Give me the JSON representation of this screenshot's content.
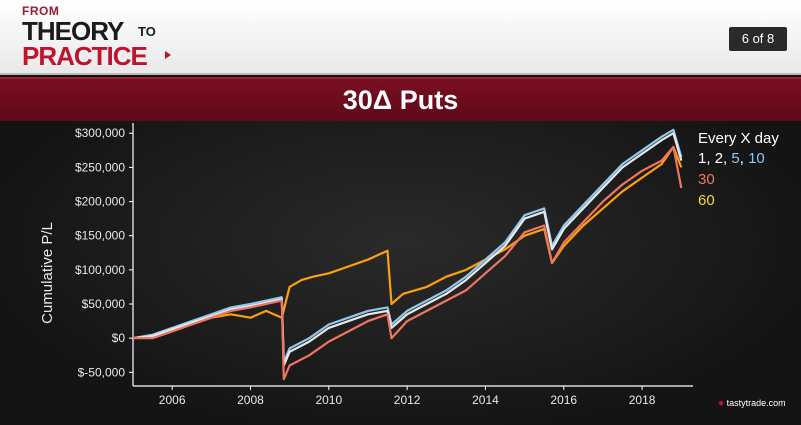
{
  "header": {
    "logo": {
      "from": "FROM",
      "theory": "THEORY",
      "to": "TO",
      "practice": "PRACTICE"
    },
    "page_counter": "6 of 8"
  },
  "slide_title": "30Δ Puts",
  "watermark": "tastytrade.com",
  "colors": {
    "freq_1_2_5_10": "#8ec8ee",
    "freq_30": "#f07560",
    "freq_60": "#f5d83a",
    "orange_series": "#ff9f0a",
    "title_bar": "#6b0c1d"
  },
  "chart_data": {
    "type": "line",
    "title": "",
    "xlabel": "",
    "ylabel": "Cumulative P/L",
    "xlim": [
      2005.0,
      2019.3
    ],
    "ylim": [
      -70000,
      315000
    ],
    "x_ticks": [
      "2006",
      "2008",
      "2010",
      "2012",
      "2014",
      "2016",
      "2018"
    ],
    "y_ticks": [
      "$300,000",
      "$250,000",
      "$200,000",
      "$150,000",
      "$100,000",
      "$50,000",
      "$0",
      "$-50,000"
    ],
    "legend": {
      "title": "Every X day",
      "entries": [
        "1",
        "2",
        "5",
        "10",
        "30",
        "60"
      ],
      "placement": "right"
    },
    "series": [
      {
        "color": "#ff9f0a",
        "points": [
          [
            2005.0,
            0
          ],
          [
            2005.5,
            5000
          ],
          [
            2006.0,
            15000
          ],
          [
            2006.5,
            20000
          ],
          [
            2007.0,
            30000
          ],
          [
            2007.5,
            35000
          ],
          [
            2008.0,
            30000
          ],
          [
            2008.4,
            40000
          ],
          [
            2008.8,
            30000
          ],
          [
            2009.0,
            75000
          ],
          [
            2009.3,
            85000
          ],
          [
            2009.6,
            90000
          ],
          [
            2010.0,
            95000
          ],
          [
            2010.5,
            105000
          ],
          [
            2011.0,
            115000
          ],
          [
            2011.5,
            128000
          ],
          [
            2011.6,
            50000
          ],
          [
            2011.9,
            65000
          ],
          [
            2012.5,
            75000
          ],
          [
            2013.0,
            90000
          ],
          [
            2013.5,
            100000
          ],
          [
            2014.0,
            115000
          ],
          [
            2014.5,
            130000
          ],
          [
            2015.0,
            150000
          ],
          [
            2015.5,
            160000
          ],
          [
            2015.7,
            110000
          ],
          [
            2016.0,
            135000
          ],
          [
            2016.5,
            165000
          ],
          [
            2017.0,
            190000
          ],
          [
            2017.5,
            215000
          ],
          [
            2018.0,
            235000
          ],
          [
            2018.5,
            255000
          ],
          [
            2018.8,
            280000
          ],
          [
            2019.0,
            250000
          ]
        ]
      },
      {
        "color": "#8ec8ee",
        "points": [
          [
            2005.0,
            0
          ],
          [
            2005.5,
            5000
          ],
          [
            2006.0,
            15000
          ],
          [
            2006.5,
            25000
          ],
          [
            2007.0,
            35000
          ],
          [
            2007.5,
            45000
          ],
          [
            2008.0,
            50000
          ],
          [
            2008.8,
            60000
          ],
          [
            2008.85,
            -35000
          ],
          [
            2009.0,
            -15000
          ],
          [
            2009.5,
            0
          ],
          [
            2010.0,
            20000
          ],
          [
            2010.5,
            30000
          ],
          [
            2011.0,
            40000
          ],
          [
            2011.5,
            45000
          ],
          [
            2011.6,
            20000
          ],
          [
            2012.0,
            40000
          ],
          [
            2012.5,
            55000
          ],
          [
            2013.0,
            70000
          ],
          [
            2013.5,
            90000
          ],
          [
            2014.0,
            115000
          ],
          [
            2014.5,
            140000
          ],
          [
            2015.0,
            180000
          ],
          [
            2015.5,
            190000
          ],
          [
            2015.7,
            135000
          ],
          [
            2016.0,
            165000
          ],
          [
            2016.5,
            195000
          ],
          [
            2017.0,
            225000
          ],
          [
            2017.5,
            255000
          ],
          [
            2018.0,
            275000
          ],
          [
            2018.5,
            295000
          ],
          [
            2018.8,
            305000
          ],
          [
            2019.0,
            265000
          ]
        ]
      },
      {
        "color": "#e8e8e8",
        "points": [
          [
            2005.0,
            0
          ],
          [
            2005.5,
            3000
          ],
          [
            2006.0,
            13000
          ],
          [
            2006.5,
            23000
          ],
          [
            2007.0,
            32000
          ],
          [
            2007.5,
            42000
          ],
          [
            2008.0,
            47000
          ],
          [
            2008.8,
            57000
          ],
          [
            2008.85,
            -40000
          ],
          [
            2009.0,
            -20000
          ],
          [
            2009.5,
            -5000
          ],
          [
            2010.0,
            15000
          ],
          [
            2010.5,
            25000
          ],
          [
            2011.0,
            35000
          ],
          [
            2011.5,
            40000
          ],
          [
            2011.6,
            15000
          ],
          [
            2012.0,
            35000
          ],
          [
            2012.5,
            50000
          ],
          [
            2013.0,
            65000
          ],
          [
            2013.5,
            85000
          ],
          [
            2014.0,
            110000
          ],
          [
            2014.5,
            135000
          ],
          [
            2015.0,
            175000
          ],
          [
            2015.5,
            185000
          ],
          [
            2015.7,
            130000
          ],
          [
            2016.0,
            160000
          ],
          [
            2016.5,
            190000
          ],
          [
            2017.0,
            220000
          ],
          [
            2017.5,
            250000
          ],
          [
            2018.0,
            270000
          ],
          [
            2018.5,
            290000
          ],
          [
            2018.8,
            300000
          ],
          [
            2019.0,
            260000
          ]
        ]
      },
      {
        "color": "#f07560",
        "points": [
          [
            2005.0,
            0
          ],
          [
            2005.5,
            0
          ],
          [
            2006.0,
            10000
          ],
          [
            2006.5,
            20000
          ],
          [
            2007.0,
            30000
          ],
          [
            2007.5,
            40000
          ],
          [
            2008.0,
            45000
          ],
          [
            2008.8,
            55000
          ],
          [
            2008.85,
            -60000
          ],
          [
            2009.0,
            -40000
          ],
          [
            2009.5,
            -25000
          ],
          [
            2010.0,
            -5000
          ],
          [
            2010.5,
            10000
          ],
          [
            2011.0,
            25000
          ],
          [
            2011.5,
            35000
          ],
          [
            2011.6,
            0
          ],
          [
            2012.0,
            25000
          ],
          [
            2012.5,
            40000
          ],
          [
            2013.0,
            55000
          ],
          [
            2013.5,
            70000
          ],
          [
            2014.0,
            95000
          ],
          [
            2014.5,
            120000
          ],
          [
            2015.0,
            155000
          ],
          [
            2015.5,
            165000
          ],
          [
            2015.7,
            110000
          ],
          [
            2016.0,
            140000
          ],
          [
            2016.5,
            170000
          ],
          [
            2017.0,
            200000
          ],
          [
            2017.5,
            225000
          ],
          [
            2018.0,
            245000
          ],
          [
            2018.5,
            260000
          ],
          [
            2018.8,
            280000
          ],
          [
            2019.0,
            220000
          ]
        ]
      }
    ]
  }
}
